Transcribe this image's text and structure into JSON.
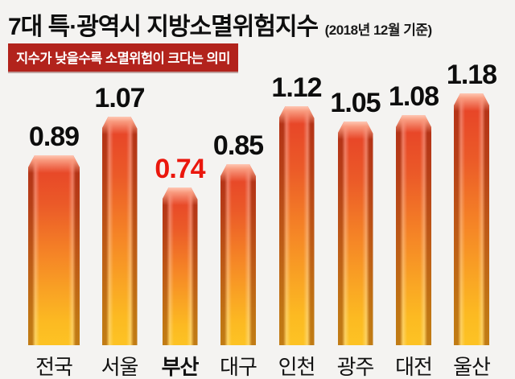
{
  "header": {
    "title": "7대 특·광역시 지방소멸위험지수",
    "title_suffix": "(2018년 12월 기준)",
    "badge": "지수가 낮을수록 소멸위험이 크다는 의미"
  },
  "chart_data": {
    "type": "bar",
    "title": "7대 특·광역시 지방소멸위험지수 (2018년 12월 기준)",
    "note": "지수가 낮을수록 소멸위험이 크다는 의미",
    "categories": [
      "전국",
      "서울",
      "부산",
      "대구",
      "인천",
      "광주",
      "대전",
      "울산"
    ],
    "values": [
      0.89,
      1.07,
      0.74,
      0.85,
      1.12,
      1.05,
      1.08,
      1.18
    ],
    "highlight_category": "부산",
    "highlight_value": 0.74,
    "xlabel": "",
    "ylabel": "지방소멸위험지수",
    "ylim": [
      0,
      1.3
    ],
    "grid": false,
    "legend": "none",
    "value_labels_shown": true,
    "colors": {
      "bar_top": "#e63f28",
      "bar_bottom": "#fdc324",
      "bar_cap_light": "#ffc7b4",
      "value_label": "#0d0d0d",
      "value_label_highlight": "#ea170d",
      "badge_background": "#b2231c",
      "badge_text": "#ffffff",
      "page_background": "#f4f3f1"
    }
  }
}
